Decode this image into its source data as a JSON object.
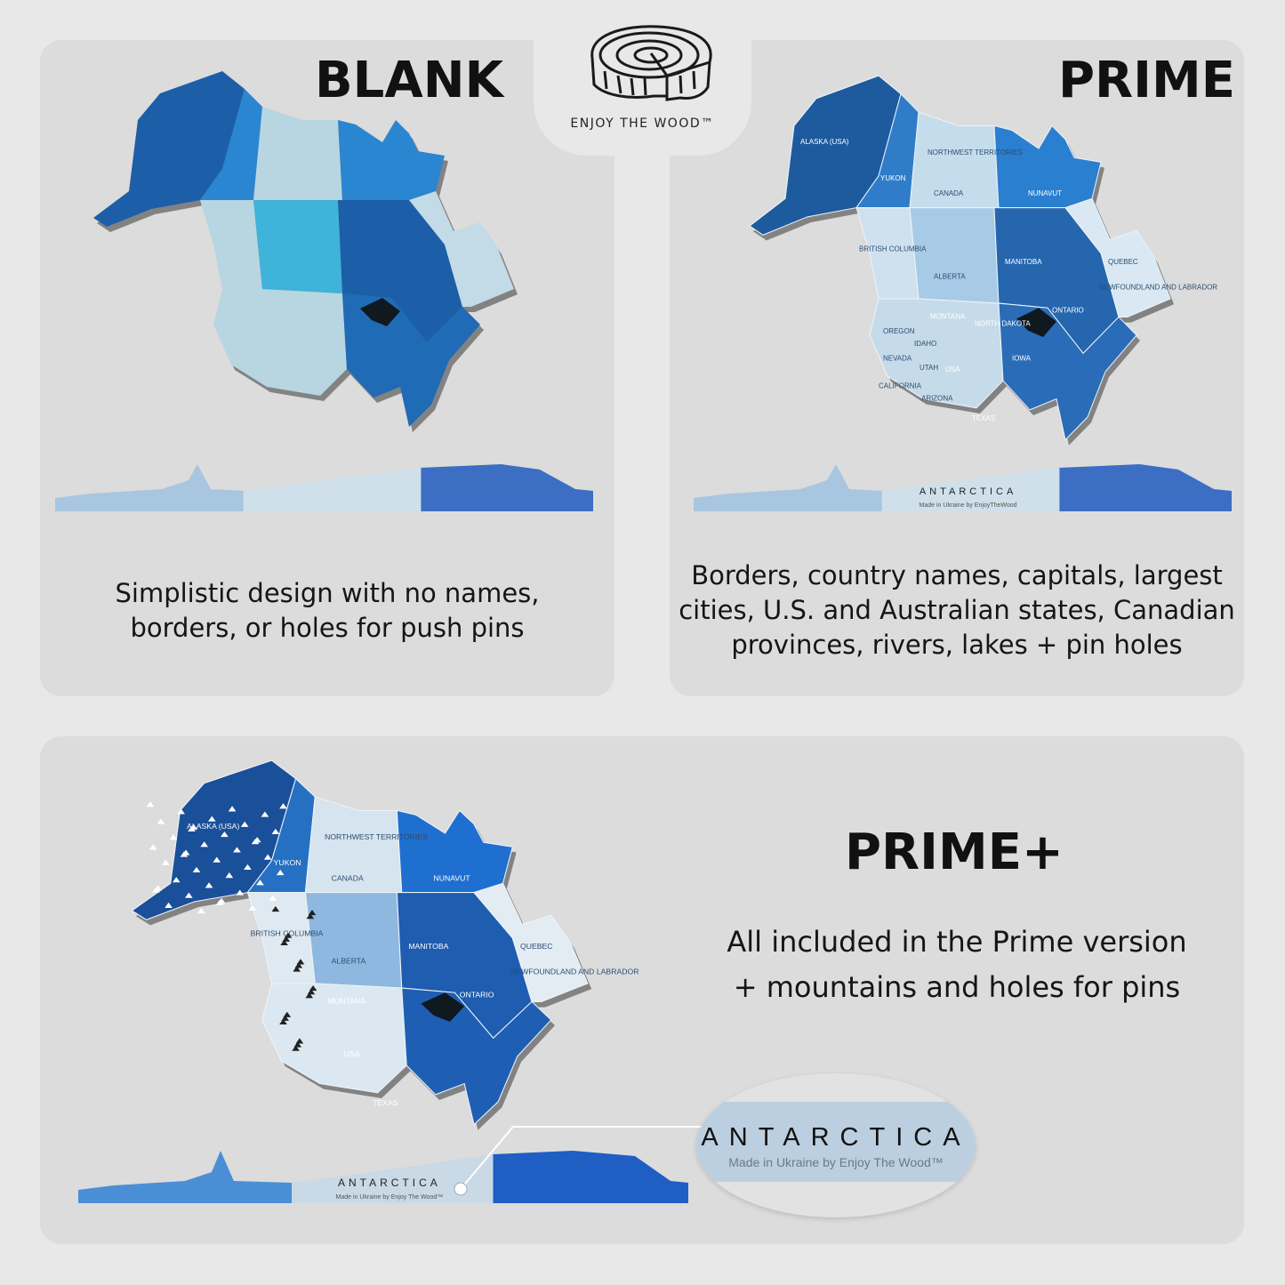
{
  "logo": {
    "text": "ENJOY THE WOOD™"
  },
  "blank": {
    "title": "BLANK",
    "description_line1": "Simplistic design with no names,",
    "description_line2": "borders, or holes for push pins",
    "colors": {
      "alaska": "#1c5fa8",
      "yukon": "#2a86d1",
      "nwt": "#b7d6e2",
      "nunavut": "#2a86d1",
      "bc": "#b7d6e2",
      "prairies": "#3fb3d9",
      "ontario": "#1c5fa8",
      "quebec": "#c2dbe6",
      "usa_west": "#b7d6e2",
      "usa_east": "#1f6bb5",
      "antarctica": [
        "#a9c6e0",
        "#cfe0ea",
        "#3c6fc4"
      ]
    }
  },
  "prime": {
    "title": "PRIME",
    "description_line1": "Borders, country names, capitals, largest",
    "description_line2": "cities, U.S. and Australian states, Canadian",
    "description_line3": "provinces, rivers, lakes + pin holes",
    "labels": {
      "alaska": "ALASKA (USA)",
      "yukon": "YUKON",
      "nwt": "NORTHWEST TERRITORIES",
      "canada": "CANADA",
      "nunavut": "NUNAVUT",
      "bc": "BRITISH COLUMBIA",
      "alberta": "ALBERTA",
      "manitoba": "MANITOBA",
      "ontario": "ONTARIO",
      "quebec": "QUEBEC",
      "newfoundland": "NEWFOUNDLAND AND LABRADOR",
      "montana": "MONTANA",
      "oregon": "OREGON",
      "idaho": "IDAHO",
      "nevada": "NEVADA",
      "utah": "UTAH",
      "california": "CALIFORNIA",
      "arizona": "ARIZONA",
      "usa": "USA",
      "iowa": "IOWA",
      "texas": "TEXAS",
      "north_dakota": "NORTH DAKOTA",
      "antarctica": "ANTARCTICA",
      "antarctica_sub": "Made in Ukraine by EnjoyTheWood"
    },
    "colors": {
      "alaska": "#1d5b9e",
      "yukon": "#2f7dc8",
      "nwt": "#c5dcec",
      "nunavut": "#2a7fd0",
      "bc": "#cfe1ee",
      "prairies": "#a7cbe6",
      "ontario": "#2566ae",
      "quebec": "#d9e8f2",
      "usa_west": "#c6dbea",
      "usa_east": "#2a6cb8",
      "antarctica": [
        "#a9c6e0",
        "#cfe0ea",
        "#3c6fc4"
      ]
    }
  },
  "prime_plus": {
    "title": "PRIME+",
    "description_line1": "All included in the Prime version",
    "description_line2": "+ mountains and holes for pins",
    "labels": {
      "alaska": "ALASKA (USA)",
      "yukon": "YUKON",
      "nwt": "NORTHWEST TERRITORIES",
      "canada": "CANADA",
      "nunavut": "NUNAVUT",
      "bc": "BRITISH COLUMBIA",
      "alberta": "ALBERTA",
      "manitoba": "MANITOBA",
      "ontario": "ONTARIO",
      "quebec": "QUEBEC",
      "newfoundland": "NEWFOUNDLAND AND LABRADOR",
      "montana": "MONTANA",
      "usa": "USA",
      "texas": "TEXAS",
      "antarctica": "ANTARCTICA",
      "antarctica_sub": "Made in Ukraine by Enjoy The Wood™"
    },
    "colors": {
      "alaska": "#1a4f9a",
      "yukon": "#2670c4",
      "nwt": "#d6e4ef",
      "nunavut": "#1f6fd0",
      "bc": "#dfe9f1",
      "prairies": "#8fb8e0",
      "ontario": "#1e5db0",
      "quebec": "#e3ecf3",
      "usa_west": "#dce8f1",
      "usa_east": "#1e5fb4",
      "antarctica": [
        "#4a8fd6",
        "#c9d9e6",
        "#1f5fc4"
      ]
    },
    "zoom": {
      "title": "ANTARCTICA",
      "subtitle": "Made in Ukraine by Enjoy The Wood™"
    }
  }
}
